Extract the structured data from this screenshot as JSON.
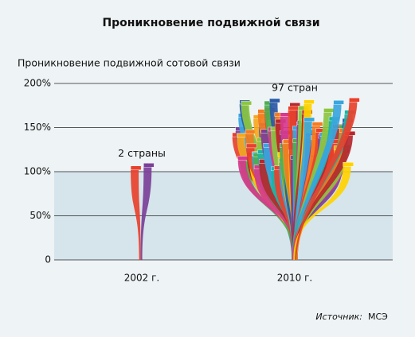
{
  "chart_data": {
    "type": "fan",
    "title": "Проникновение подвижной связи",
    "y_label": "Проникновение подвижной сотовой связи",
    "categories": [
      "2002 г.",
      "2010 г."
    ],
    "values": [
      2,
      97
    ],
    "value_labels": [
      "2 страны",
      "97 стран"
    ],
    "max": [
      106,
      180
    ],
    "ylim": [
      0,
      200
    ],
    "yticks": [
      0,
      {
        "value": 50,
        "label": "50%"
      },
      {
        "value": 100,
        "label": "100%"
      },
      {
        "value": 150,
        "label": "150%"
      },
      {
        "value": 200,
        "label": "200%"
      }
    ],
    "highlight_range": [
      0,
      100
    ],
    "grid": true,
    "colors": [
      "#e8412c",
      "#7b3f98",
      "#3aa6dd",
      "#f6a81c",
      "#4caf50",
      "#d63a8c",
      "#2b5aa8",
      "#8cc63f",
      "#f47b20",
      "#1bb3a4",
      "#b5282e",
      "#ffd200"
    ],
    "source": {
      "label": "Источник:",
      "name": "МСЭ"
    }
  }
}
